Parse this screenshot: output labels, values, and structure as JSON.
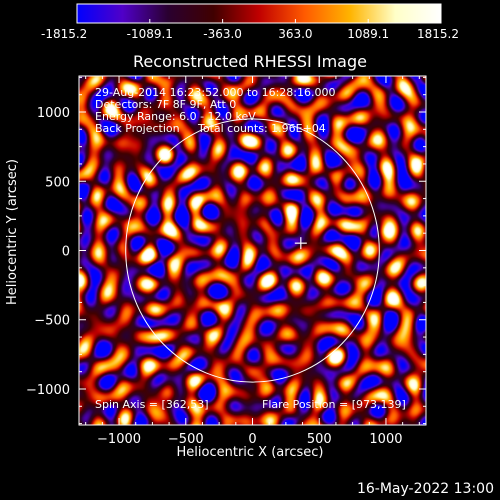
{
  "chart_data": {
    "type": "heatmap",
    "title": "Reconstructed RHESSI Image",
    "xlabel": "Heliocentric X (arcsec)",
    "ylabel": "Heliocentric Y (arcsec)",
    "xlim": [
      -1300,
      1300
    ],
    "ylim": [
      -1260,
      1260
    ],
    "x_ticks": [
      -1000,
      -500,
      0,
      500,
      1000
    ],
    "y_ticks": [
      -1000,
      -500,
      0,
      500,
      1000
    ],
    "colorbar": {
      "min": -1815.2,
      "max": 1815.2,
      "tick_values": [
        -1815.2,
        -1089.1,
        -363.0,
        363.0,
        1089.1,
        1815.2
      ],
      "tick_labels": [
        "-1815.2",
        "-1089.1",
        "-363.0",
        "363.0",
        "1089.1",
        "1815.2"
      ],
      "colormap": [
        "#0000ff",
        "#5000c8",
        "#2a0030",
        "#400000",
        "#c00000",
        "#ff5a00",
        "#ffb400",
        "#ffffc8",
        "#ffffff"
      ]
    },
    "solar_disk": {
      "center": [
        0,
        0
      ],
      "radius": 950,
      "color": "#ffffff"
    },
    "spin_axis": [
      362,
      53
    ],
    "flare_position": [
      973,
      139
    ],
    "annotations": {
      "time_range": "29-Aug-2014 16:23:52.000 to 16:28:16.000",
      "detectors": "Detectors: 7F 8F 9F, Att 0",
      "energy_range": "Energy Range: 6.0 - 12.0 keV",
      "method": "Back Projection",
      "total_counts": "Total counts: 1.96E+04",
      "spin_axis_label": "Spin Axis = [362,53]",
      "flare_position_label": "Flare Position = [973,139]"
    }
  },
  "footer": {
    "timestamp": "16-May-2022 13:00"
  }
}
